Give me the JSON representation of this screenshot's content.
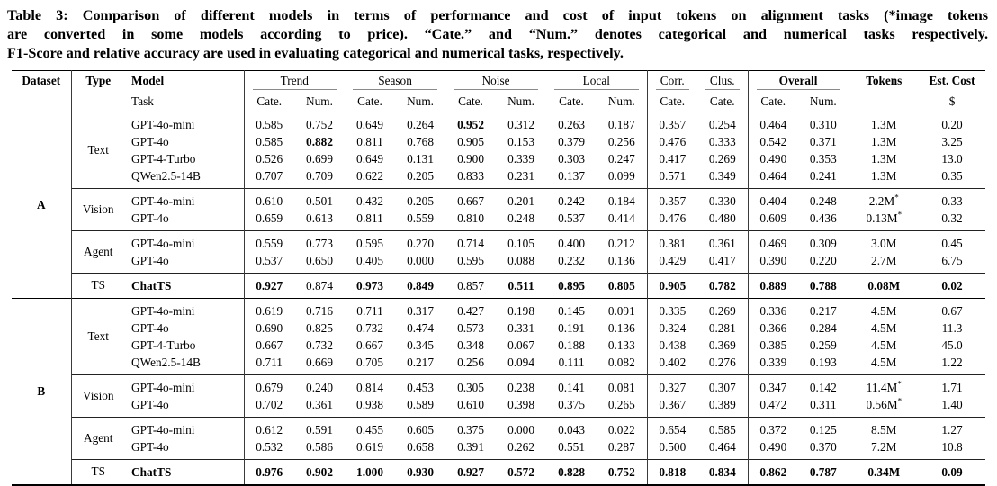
{
  "caption": {
    "lines": [
      "Table 3: Comparison of different models in terms of performance and cost of input tokens on alignment tasks (*image tokens",
      "are converted in some models according to price). “Cate.” and “Num.” denotes categorical and numerical tasks respectively.",
      "F1-Score and relative accuracy are used in evaluating categorical and numerical tasks, respectively."
    ]
  },
  "table": {
    "header": {
      "dataset": "Dataset",
      "type": "Type",
      "model": "Model",
      "task": "Task",
      "groups": [
        {
          "label": "Trend",
          "subs": [
            "Cate.",
            "Num."
          ]
        },
        {
          "label": "Season",
          "subs": [
            "Cate.",
            "Num."
          ]
        },
        {
          "label": "Noise",
          "subs": [
            "Cate.",
            "Num."
          ]
        },
        {
          "label": "Local",
          "subs": [
            "Cate.",
            "Num."
          ]
        },
        {
          "label": "Corr.",
          "subs": [
            "Cate."
          ]
        },
        {
          "label": "Clus.",
          "subs": [
            "Cate."
          ]
        },
        {
          "label": "Overall",
          "subs": [
            "Cate.",
            "Num."
          ],
          "bold": true
        }
      ],
      "tokens": "Tokens",
      "est_cost": "Est. Cost",
      "cost_unit": "$"
    },
    "datasets": [
      {
        "name": "A",
        "groups": [
          {
            "type": "Text",
            "rows": [
              {
                "model": "GPT-4o-mini",
                "values": [
                  "0.585",
                  "0.752",
                  "0.649",
                  "0.264",
                  "0.952",
                  "0.312",
                  "0.263",
                  "0.187",
                  "0.357",
                  "0.254",
                  "0.464",
                  "0.310"
                ],
                "bold": [
                  4
                ],
                "tokens": "1.3M",
                "cost": "0.20"
              },
              {
                "model": "GPT-4o",
                "values": [
                  "0.585",
                  "0.882",
                  "0.811",
                  "0.768",
                  "0.905",
                  "0.153",
                  "0.379",
                  "0.256",
                  "0.476",
                  "0.333",
                  "0.542",
                  "0.371"
                ],
                "bold": [
                  1
                ],
                "tokens": "1.3M",
                "cost": "3.25"
              },
              {
                "model": "GPT-4-Turbo",
                "values": [
                  "0.526",
                  "0.699",
                  "0.649",
                  "0.131",
                  "0.900",
                  "0.339",
                  "0.303",
                  "0.247",
                  "0.417",
                  "0.269",
                  "0.490",
                  "0.353"
                ],
                "bold": [],
                "tokens": "1.3M",
                "cost": "13.0"
              },
              {
                "model": "QWen2.5-14B",
                "values": [
                  "0.707",
                  "0.709",
                  "0.622",
                  "0.205",
                  "0.833",
                  "0.231",
                  "0.137",
                  "0.099",
                  "0.571",
                  "0.349",
                  "0.464",
                  "0.241"
                ],
                "bold": [],
                "tokens": "1.3M",
                "cost": "0.35"
              }
            ]
          },
          {
            "type": "Vision",
            "rows": [
              {
                "model": "GPT-4o-mini",
                "values": [
                  "0.610",
                  "0.501",
                  "0.432",
                  "0.205",
                  "0.667",
                  "0.201",
                  "0.242",
                  "0.184",
                  "0.357",
                  "0.330",
                  "0.404",
                  "0.248"
                ],
                "bold": [],
                "tokens": "2.2M*",
                "cost": "0.33"
              },
              {
                "model": "GPT-4o",
                "values": [
                  "0.659",
                  "0.613",
                  "0.811",
                  "0.559",
                  "0.810",
                  "0.248",
                  "0.537",
                  "0.414",
                  "0.476",
                  "0.480",
                  "0.609",
                  "0.436"
                ],
                "bold": [],
                "tokens": "0.13M*",
                "cost": "0.32"
              }
            ]
          },
          {
            "type": "Agent",
            "rows": [
              {
                "model": "GPT-4o-mini",
                "values": [
                  "0.559",
                  "0.773",
                  "0.595",
                  "0.270",
                  "0.714",
                  "0.105",
                  "0.400",
                  "0.212",
                  "0.381",
                  "0.361",
                  "0.469",
                  "0.309"
                ],
                "bold": [],
                "tokens": "3.0M",
                "cost": "0.45"
              },
              {
                "model": "GPT-4o",
                "values": [
                  "0.537",
                  "0.650",
                  "0.405",
                  "0.000",
                  "0.595",
                  "0.088",
                  "0.232",
                  "0.136",
                  "0.429",
                  "0.417",
                  "0.390",
                  "0.220"
                ],
                "bold": [],
                "tokens": "2.7M",
                "cost": "6.75"
              }
            ]
          },
          {
            "type": "TS",
            "rows": [
              {
                "model": "ChatTS",
                "model_bold": true,
                "values": [
                  "0.927",
                  "0.874",
                  "0.973",
                  "0.849",
                  "0.857",
                  "0.511",
                  "0.895",
                  "0.805",
                  "0.905",
                  "0.782",
                  "0.889",
                  "0.788"
                ],
                "bold": [
                  0,
                  2,
                  3,
                  5,
                  6,
                  7,
                  8,
                  9,
                  10,
                  11
                ],
                "tokens": "0.08M",
                "tokens_bold": true,
                "cost": "0.02",
                "cost_bold": true
              }
            ]
          }
        ]
      },
      {
        "name": "B",
        "groups": [
          {
            "type": "Text",
            "rows": [
              {
                "model": "GPT-4o-mini",
                "values": [
                  "0.619",
                  "0.716",
                  "0.711",
                  "0.317",
                  "0.427",
                  "0.198",
                  "0.145",
                  "0.091",
                  "0.335",
                  "0.269",
                  "0.336",
                  "0.217"
                ],
                "bold": [],
                "tokens": "4.5M",
                "cost": "0.67"
              },
              {
                "model": "GPT-4o",
                "values": [
                  "0.690",
                  "0.825",
                  "0.732",
                  "0.474",
                  "0.573",
                  "0.331",
                  "0.191",
                  "0.136",
                  "0.324",
                  "0.281",
                  "0.366",
                  "0.284"
                ],
                "bold": [],
                "tokens": "4.5M",
                "cost": "11.3"
              },
              {
                "model": "GPT-4-Turbo",
                "values": [
                  "0.667",
                  "0.732",
                  "0.667",
                  "0.345",
                  "0.348",
                  "0.067",
                  "0.188",
                  "0.133",
                  "0.438",
                  "0.369",
                  "0.385",
                  "0.259"
                ],
                "bold": [],
                "tokens": "4.5M",
                "cost": "45.0"
              },
              {
                "model": "QWen2.5-14B",
                "values": [
                  "0.711",
                  "0.669",
                  "0.705",
                  "0.217",
                  "0.256",
                  "0.094",
                  "0.111",
                  "0.082",
                  "0.402",
                  "0.276",
                  "0.339",
                  "0.193"
                ],
                "bold": [],
                "tokens": "4.5M",
                "cost": "1.22"
              }
            ]
          },
          {
            "type": "Vision",
            "rows": [
              {
                "model": "GPT-4o-mini",
                "values": [
                  "0.679",
                  "0.240",
                  "0.814",
                  "0.453",
                  "0.305",
                  "0.238",
                  "0.141",
                  "0.081",
                  "0.327",
                  "0.307",
                  "0.347",
                  "0.142"
                ],
                "bold": [],
                "tokens": "11.4M*",
                "cost": "1.71"
              },
              {
                "model": "GPT-4o",
                "values": [
                  "0.702",
                  "0.361",
                  "0.938",
                  "0.589",
                  "0.610",
                  "0.398",
                  "0.375",
                  "0.265",
                  "0.367",
                  "0.389",
                  "0.472",
                  "0.311"
                ],
                "bold": [],
                "tokens": "0.56M*",
                "cost": "1.40"
              }
            ]
          },
          {
            "type": "Agent",
            "rows": [
              {
                "model": "GPT-4o-mini",
                "values": [
                  "0.612",
                  "0.591",
                  "0.455",
                  "0.605",
                  "0.375",
                  "0.000",
                  "0.043",
                  "0.022",
                  "0.654",
                  "0.585",
                  "0.372",
                  "0.125"
                ],
                "bold": [],
                "tokens": "8.5M",
                "cost": "1.27"
              },
              {
                "model": "GPT-4o",
                "values": [
                  "0.532",
                  "0.586",
                  "0.619",
                  "0.658",
                  "0.391",
                  "0.262",
                  "0.551",
                  "0.287",
                  "0.500",
                  "0.464",
                  "0.490",
                  "0.370"
                ],
                "bold": [],
                "tokens": "7.2M",
                "cost": "10.8"
              }
            ]
          },
          {
            "type": "TS",
            "rows": [
              {
                "model": "ChatTS",
                "model_bold": true,
                "values": [
                  "0.976",
                  "0.902",
                  "1.000",
                  "0.930",
                  "0.927",
                  "0.572",
                  "0.828",
                  "0.752",
                  "0.818",
                  "0.834",
                  "0.862",
                  "0.787"
                ],
                "bold": [
                  0,
                  1,
                  2,
                  3,
                  4,
                  5,
                  6,
                  7,
                  8,
                  9,
                  10,
                  11
                ],
                "tokens": "0.34M",
                "tokens_bold": true,
                "cost": "0.09",
                "cost_bold": true
              }
            ]
          }
        ]
      }
    ]
  }
}
